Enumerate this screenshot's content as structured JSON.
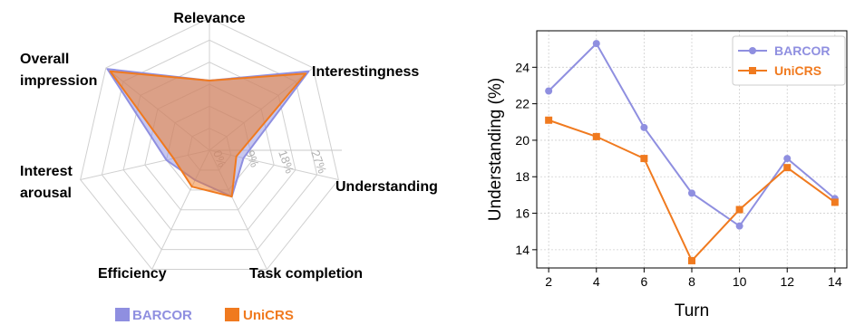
{
  "chart_data": [
    {
      "type": "radar",
      "axes": [
        "Relevance",
        "Interestingness",
        "Understanding",
        "Task completion",
        "Efficiency",
        "Interest arousal",
        "Overall impression"
      ],
      "axis_label_lines": [
        [
          "Relevance"
        ],
        [
          "Interestingness"
        ],
        [
          "Understanding"
        ],
        [
          "Task completion"
        ],
        [
          "Efficiency"
        ],
        [
          "Interest",
          "arousal"
        ],
        [
          "Overall",
          "impression"
        ]
      ],
      "radial_ticks": [
        "0%",
        "9%",
        "18%",
        "27%"
      ],
      "rmax": 36,
      "series": [
        {
          "name": "BARCOR",
          "values": [
            19,
            34.5,
            9.5,
            14,
            9,
            12,
            35.5
          ]
        },
        {
          "name": "UniCRS",
          "values": [
            19,
            33.5,
            7.5,
            14,
            11,
            10,
            34.5
          ]
        }
      ],
      "legend_position": "bottom",
      "grid": true
    },
    {
      "type": "line",
      "x": [
        2,
        4,
        6,
        8,
        10,
        12,
        14
      ],
      "xticks": [
        "2",
        "4",
        "6",
        "8",
        "10",
        "12",
        "14"
      ],
      "yticks": [
        "14",
        "16",
        "18",
        "20",
        "22",
        "24"
      ],
      "xlabel": "Turn",
      "ylabel": "Understanding (%)",
      "xlim": [
        1.5,
        14.5
      ],
      "ylim": [
        13,
        26
      ],
      "series": [
        {
          "name": "BARCOR",
          "marker": "circle",
          "values": [
            22.7,
            25.3,
            20.7,
            17.1,
            15.3,
            19.0,
            16.8
          ]
        },
        {
          "name": "UniCRS",
          "marker": "square",
          "values": [
            21.1,
            20.2,
            19.0,
            13.4,
            16.2,
            18.5,
            16.6
          ]
        }
      ],
      "legend_position": "top-right",
      "grid": true
    }
  ],
  "colors": {
    "BARCOR": "#8F8FE0",
    "UniCRS": "#F07A1F"
  },
  "legend_bottom": {
    "barcor": "BARCOR",
    "unicrs": "UniCRS"
  }
}
